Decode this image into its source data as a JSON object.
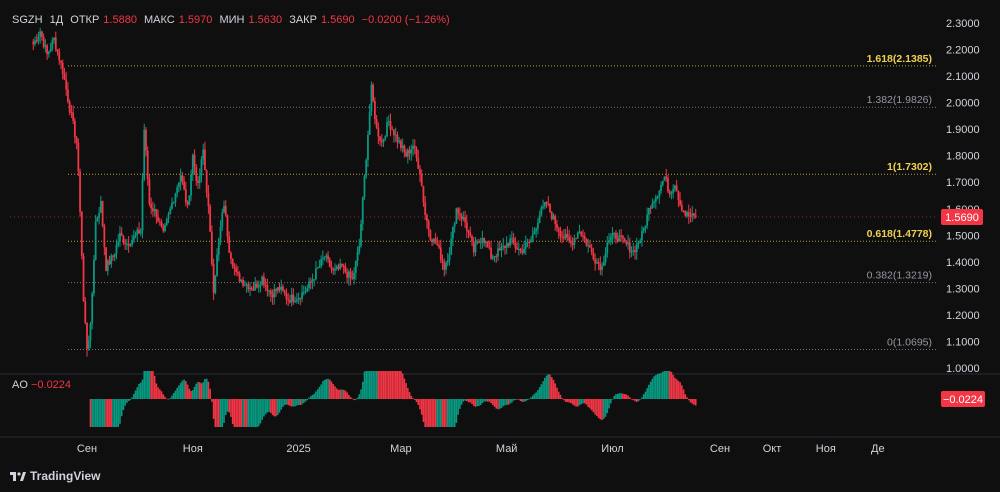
{
  "header": {
    "symbol": "SGZH",
    "interval": "1Д",
    "open_label": "ОТКР",
    "open_value": "1.5880",
    "high_label": "МАКС",
    "high_value": "1.5970",
    "low_label": "МИН",
    "low_value": "1.5630",
    "close_label": "ЗАКР",
    "close_value": "1.5690",
    "change": "−0.0200 (−1.26%)"
  },
  "price_badge": "1.5690",
  "ao": {
    "label": "AO",
    "value": "−0.0224",
    "badge": "−0.0224"
  },
  "brand": "TradingView",
  "colors": {
    "up": "#089981",
    "down": "#f23645",
    "fib_highlight": "#f0d050",
    "fib_dim": "#9598a1",
    "background": "#0f0f0f"
  },
  "chart_data": {
    "type": "candlestick",
    "y_axis": {
      "min": 1.0,
      "max": 2.3,
      "ticks": [
        "2.3000",
        "2.2000",
        "2.1000",
        "2.0000",
        "1.9000",
        "1.8000",
        "1.7000",
        "1.6000",
        "1.5000",
        "1.4000",
        "1.3000",
        "1.2000",
        "1.1000",
        "1.0000"
      ]
    },
    "x_axis": {
      "labels": [
        {
          "text": "Сен",
          "month": "2024-09"
        },
        {
          "text": "Ноя",
          "month": "2024-11"
        },
        {
          "text": "2025",
          "month": "2025-01"
        },
        {
          "text": "Мар",
          "month": "2025-03"
        },
        {
          "text": "Май",
          "month": "2025-05"
        },
        {
          "text": "Июл",
          "month": "2025-07"
        },
        {
          "text": "Сен",
          "month": "2025-09"
        },
        {
          "text": "Окт",
          "month": "2025-10"
        },
        {
          "text": "Ноя",
          "month": "2025-11"
        },
        {
          "text": "Де",
          "month": "2025-12"
        }
      ]
    },
    "fib_levels": [
      {
        "text": "1.618(2.1385)",
        "value": 2.1385,
        "highlight": true
      },
      {
        "text": "1.382(1.9826)",
        "value": 1.9826,
        "highlight": false
      },
      {
        "text": "1(1.7302)",
        "value": 1.7302,
        "highlight": true
      },
      {
        "text": "0.618(1.4778)",
        "value": 1.4778,
        "highlight": true
      },
      {
        "text": "0.382(1.3219)",
        "value": 1.3219,
        "highlight": false
      },
      {
        "text": "0(1.0695)",
        "value": 1.0695,
        "highlight": false
      }
    ],
    "anchors": [
      [
        "2024-08-01",
        2.22
      ],
      [
        "2024-08-05",
        2.27
      ],
      [
        "2024-08-09",
        2.18
      ],
      [
        "2024-08-13",
        2.24
      ],
      [
        "2024-08-18",
        2.12
      ],
      [
        "2024-08-22",
        1.98
      ],
      [
        "2024-08-26",
        1.85
      ],
      [
        "2024-08-28",
        1.6
      ],
      [
        "2024-08-30",
        1.25
      ],
      [
        "2024-09-01",
        1.08
      ],
      [
        "2024-09-03",
        1.15
      ],
      [
        "2024-09-06",
        1.55
      ],
      [
        "2024-09-09",
        1.62
      ],
      [
        "2024-09-12",
        1.38
      ],
      [
        "2024-09-16",
        1.42
      ],
      [
        "2024-09-20",
        1.5
      ],
      [
        "2024-09-24",
        1.47
      ],
      [
        "2024-09-28",
        1.49
      ],
      [
        "2024-10-02",
        1.52
      ],
      [
        "2024-10-04",
        1.9
      ],
      [
        "2024-10-07",
        1.62
      ],
      [
        "2024-10-11",
        1.58
      ],
      [
        "2024-10-15",
        1.5
      ],
      [
        "2024-10-20",
        1.62
      ],
      [
        "2024-10-25",
        1.73
      ],
      [
        "2024-10-29",
        1.6
      ],
      [
        "2024-11-01",
        1.8
      ],
      [
        "2024-11-04",
        1.68
      ],
      [
        "2024-11-07",
        1.82
      ],
      [
        "2024-11-10",
        1.6
      ],
      [
        "2024-11-13",
        1.3
      ],
      [
        "2024-11-16",
        1.48
      ],
      [
        "2024-11-19",
        1.62
      ],
      [
        "2024-11-22",
        1.45
      ],
      [
        "2024-11-26",
        1.35
      ],
      [
        "2024-12-01",
        1.32
      ],
      [
        "2024-12-06",
        1.3
      ],
      [
        "2024-12-11",
        1.34
      ],
      [
        "2024-12-16",
        1.28
      ],
      [
        "2024-12-21",
        1.3
      ],
      [
        "2024-12-26",
        1.26
      ],
      [
        "2025-01-01",
        1.27
      ],
      [
        "2025-01-06",
        1.3
      ],
      [
        "2025-01-11",
        1.36
      ],
      [
        "2025-01-16",
        1.42
      ],
      [
        "2025-01-21",
        1.36
      ],
      [
        "2025-01-26",
        1.38
      ],
      [
        "2025-02-01",
        1.33
      ],
      [
        "2025-02-05",
        1.46
      ],
      [
        "2025-02-09",
        1.8
      ],
      [
        "2025-02-12",
        2.05
      ],
      [
        "2025-02-15",
        1.9
      ],
      [
        "2025-02-18",
        1.85
      ],
      [
        "2025-02-22",
        1.93
      ],
      [
        "2025-02-27",
        1.86
      ],
      [
        "2025-03-04",
        1.8
      ],
      [
        "2025-03-08",
        1.84
      ],
      [
        "2025-03-12",
        1.74
      ],
      [
        "2025-03-15",
        1.58
      ],
      [
        "2025-03-18",
        1.5
      ],
      [
        "2025-03-22",
        1.46
      ],
      [
        "2025-03-26",
        1.38
      ],
      [
        "2025-03-29",
        1.44
      ],
      [
        "2025-04-02",
        1.6
      ],
      [
        "2025-04-07",
        1.55
      ],
      [
        "2025-04-12",
        1.44
      ],
      [
        "2025-04-17",
        1.5
      ],
      [
        "2025-04-22",
        1.42
      ],
      [
        "2025-04-27",
        1.44
      ],
      [
        "2025-05-03",
        1.48
      ],
      [
        "2025-05-09",
        1.44
      ],
      [
        "2025-05-15",
        1.48
      ],
      [
        "2025-05-20",
        1.58
      ],
      [
        "2025-05-24",
        1.62
      ],
      [
        "2025-05-28",
        1.56
      ],
      [
        "2025-06-02",
        1.5
      ],
      [
        "2025-06-07",
        1.47
      ],
      [
        "2025-06-12",
        1.52
      ],
      [
        "2025-06-17",
        1.46
      ],
      [
        "2025-06-22",
        1.4
      ],
      [
        "2025-06-25",
        1.38
      ],
      [
        "2025-06-28",
        1.48
      ],
      [
        "2025-07-03",
        1.5
      ],
      [
        "2025-07-08",
        1.47
      ],
      [
        "2025-07-13",
        1.44
      ],
      [
        "2025-07-18",
        1.5
      ],
      [
        "2025-07-23",
        1.62
      ],
      [
        "2025-07-27",
        1.66
      ],
      [
        "2025-07-31",
        1.72
      ],
      [
        "2025-08-03",
        1.66
      ],
      [
        "2025-08-06",
        1.7
      ],
      [
        "2025-08-09",
        1.62
      ],
      [
        "2025-08-12",
        1.58
      ],
      [
        "2025-08-15",
        1.57
      ],
      [
        "2025-08-18",
        1.569
      ]
    ],
    "current_price": 1.569
  }
}
